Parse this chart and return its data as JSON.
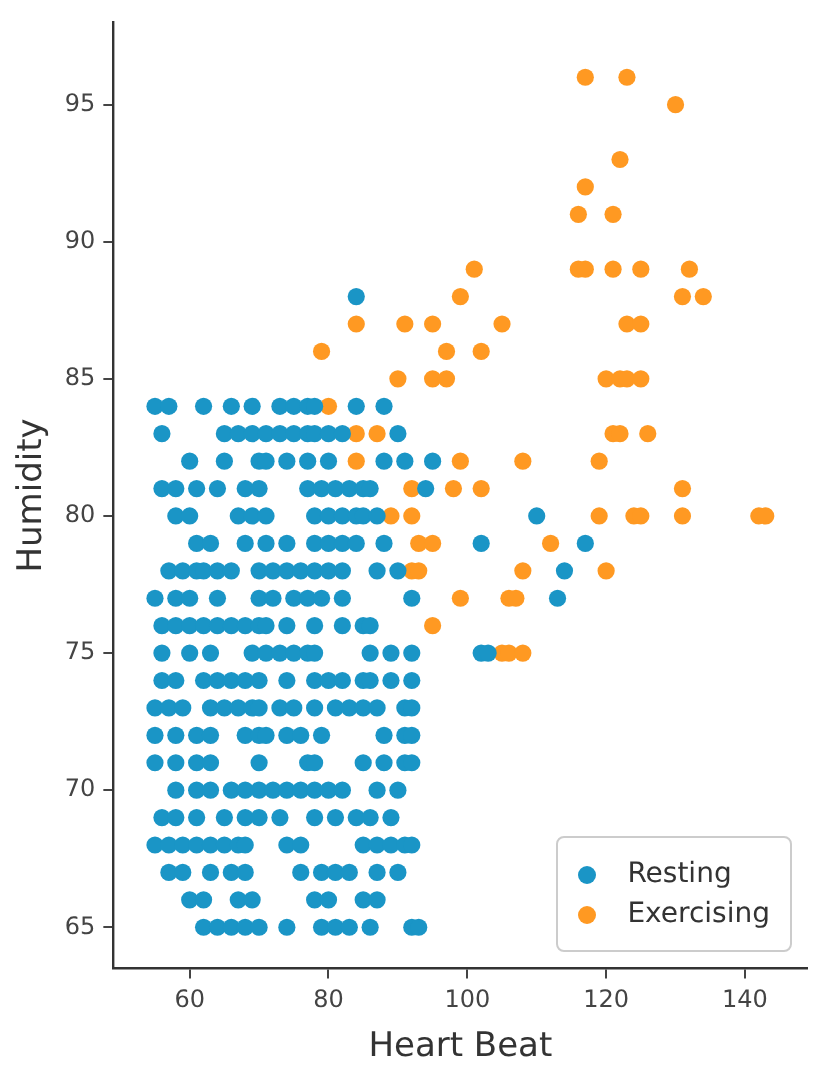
{
  "chart_data": {
    "type": "scatter",
    "xlabel": "Heart Beat",
    "ylabel": "Humidity",
    "xlim": [
      49,
      149
    ],
    "ylim": [
      63.5,
      98
    ],
    "xticks": [
      60,
      80,
      100,
      120,
      140
    ],
    "yticks": [
      65,
      70,
      75,
      80,
      85,
      90,
      95
    ],
    "grid": false,
    "legend": "bottom right",
    "marker": "circle",
    "series": [
      {
        "name": "Resting",
        "color": "#1a95c6",
        "x": [
          84,
          55,
          57,
          62,
          66,
          69,
          73,
          75,
          77,
          78,
          84,
          88,
          56,
          65,
          67,
          69,
          71,
          73,
          75,
          77,
          78,
          80,
          82,
          90,
          60,
          65,
          70,
          71,
          74,
          77,
          80,
          88,
          91,
          95,
          56,
          58,
          61,
          64,
          68,
          70,
          77,
          79,
          81,
          83,
          85,
          86,
          94,
          58,
          60,
          67,
          69,
          71,
          78,
          80,
          82,
          84,
          85,
          87,
          110,
          61,
          63,
          68,
          71,
          74,
          78,
          80,
          82,
          84,
          88,
          102,
          117,
          57,
          59,
          61,
          62,
          64,
          66,
          70,
          72,
          74,
          76,
          78,
          80,
          82,
          87,
          90,
          114,
          55,
          58,
          60,
          64,
          70,
          72,
          75,
          77,
          79,
          82,
          92,
          113,
          56,
          58,
          60,
          62,
          64,
          66,
          68,
          70,
          71,
          74,
          78,
          82,
          85,
          86,
          56,
          60,
          63,
          69,
          71,
          73,
          75,
          77,
          78,
          86,
          89,
          92,
          102,
          103,
          56,
          58,
          62,
          64,
          66,
          68,
          70,
          74,
          78,
          80,
          82,
          85,
          86,
          89,
          92,
          55,
          57,
          59,
          63,
          65,
          67,
          69,
          70,
          73,
          75,
          78,
          81,
          83,
          85,
          87,
          91,
          92,
          55,
          58,
          61,
          63,
          68,
          70,
          71,
          74,
          76,
          79,
          88,
          91,
          92,
          55,
          58,
          61,
          63,
          70,
          77,
          78,
          85,
          88,
          91,
          92,
          58,
          61,
          63,
          66,
          68,
          70,
          72,
          74,
          76,
          78,
          80,
          82,
          87,
          90,
          56,
          58,
          61,
          65,
          68,
          70,
          73,
          78,
          81,
          84,
          86,
          89,
          55,
          57,
          59,
          61,
          63,
          65,
          67,
          68,
          74,
          76,
          85,
          87,
          89,
          91,
          92,
          57,
          59,
          63,
          66,
          68,
          76,
          79,
          81,
          83,
          87,
          90,
          60,
          62,
          67,
          69,
          78,
          80,
          85,
          87,
          62,
          64,
          66,
          68,
          70,
          74,
          79,
          81,
          83,
          86,
          92,
          93
        ],
        "values": [
          88,
          84,
          84,
          84,
          84,
          84,
          84,
          84,
          84,
          84,
          84,
          84,
          83,
          83,
          83,
          83,
          83,
          83,
          83,
          83,
          83,
          83,
          83,
          83,
          82,
          82,
          82,
          82,
          82,
          82,
          82,
          82,
          82,
          82,
          81,
          81,
          81,
          81,
          81,
          81,
          81,
          81,
          81,
          81,
          81,
          81,
          81,
          80,
          80,
          80,
          80,
          80,
          80,
          80,
          80,
          80,
          80,
          80,
          80,
          79,
          79,
          79,
          79,
          79,
          79,
          79,
          79,
          79,
          79,
          79,
          79,
          78,
          78,
          78,
          78,
          78,
          78,
          78,
          78,
          78,
          78,
          78,
          78,
          78,
          78,
          78,
          78,
          77,
          77,
          77,
          77,
          77,
          77,
          77,
          77,
          77,
          77,
          77,
          77,
          76,
          76,
          76,
          76,
          76,
          76,
          76,
          76,
          76,
          76,
          76,
          76,
          76,
          76,
          75,
          75,
          75,
          75,
          75,
          75,
          75,
          75,
          75,
          75,
          75,
          75,
          75,
          75,
          74,
          74,
          74,
          74,
          74,
          74,
          74,
          74,
          74,
          74,
          74,
          74,
          74,
          74,
          74,
          73,
          73,
          73,
          73,
          73,
          73,
          73,
          73,
          73,
          73,
          73,
          73,
          73,
          73,
          73,
          73,
          73,
          72,
          72,
          72,
          72,
          72,
          72,
          72,
          72,
          72,
          72,
          72,
          72,
          72,
          71,
          71,
          71,
          71,
          71,
          71,
          71,
          71,
          71,
          71,
          71,
          70,
          70,
          70,
          70,
          70,
          70,
          70,
          70,
          70,
          70,
          70,
          70,
          70,
          70,
          69,
          69,
          69,
          69,
          69,
          69,
          69,
          69,
          69,
          69,
          69,
          69,
          68,
          68,
          68,
          68,
          68,
          68,
          68,
          68,
          68,
          68,
          68,
          68,
          68,
          68,
          68,
          67,
          67,
          67,
          67,
          67,
          67,
          67,
          67,
          67,
          67,
          67,
          66,
          66,
          66,
          66,
          66,
          66,
          66,
          66,
          65,
          65,
          65,
          65,
          65,
          65,
          65,
          65,
          65,
          65,
          65,
          65
        ]
      },
      {
        "name": "Exercising",
        "color": "#ff9922",
        "x": [
          117,
          123,
          130,
          122,
          117,
          116,
          121,
          101,
          116,
          117,
          121,
          125,
          132,
          99,
          131,
          134,
          84,
          91,
          95,
          105,
          123,
          125,
          79,
          97,
          102,
          90,
          95,
          97,
          120,
          122,
          123,
          125,
          80,
          84,
          87,
          121,
          122,
          126,
          84,
          99,
          108,
          119,
          92,
          98,
          102,
          131,
          89,
          92,
          119,
          124,
          125,
          131,
          142,
          143,
          93,
          95,
          112,
          92,
          93,
          108,
          120,
          99,
          106,
          107,
          95,
          105,
          106,
          108
        ],
        "values": [
          96,
          96,
          95,
          93,
          92,
          91,
          91,
          89,
          89,
          89,
          89,
          89,
          89,
          88,
          88,
          88,
          87,
          87,
          87,
          87,
          87,
          87,
          86,
          86,
          86,
          85,
          85,
          85,
          85,
          85,
          85,
          85,
          84,
          83,
          83,
          83,
          83,
          83,
          82,
          82,
          82,
          82,
          81,
          81,
          81,
          81,
          80,
          80,
          80,
          80,
          80,
          80,
          80,
          80,
          79,
          79,
          79,
          78,
          78,
          78,
          78,
          77,
          77,
          77,
          76,
          75,
          75,
          75
        ]
      }
    ]
  }
}
